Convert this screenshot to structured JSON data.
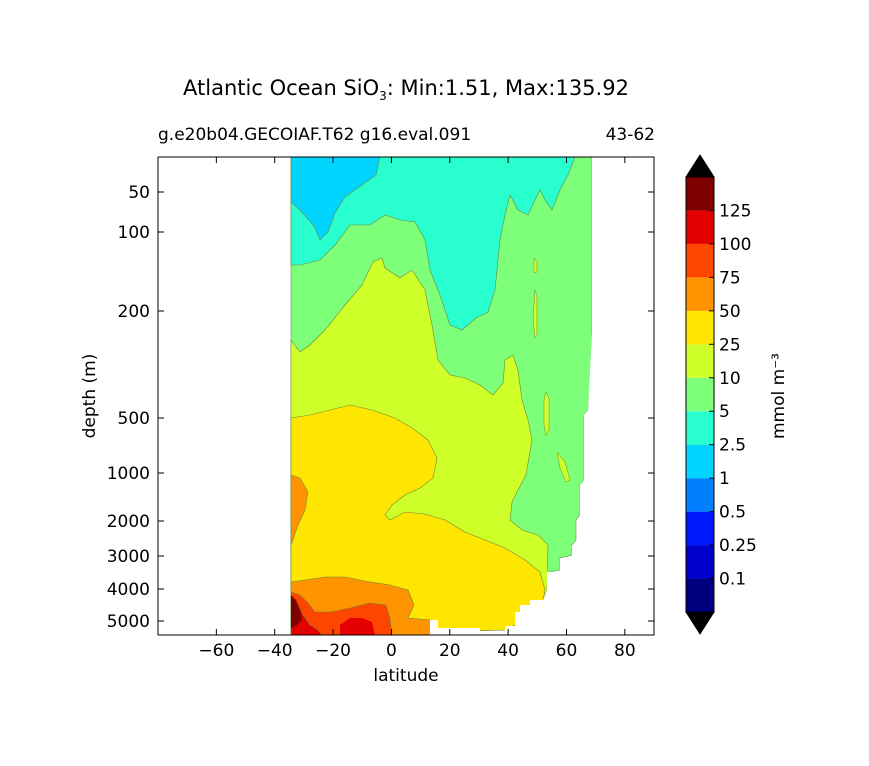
{
  "chart_data": {
    "type": "contour",
    "title_main": "Atlantic Ocean SiO",
    "title_sub": "3",
    "title_rest": ": Min:1.51, Max:135.92",
    "subtitle_left": "g.e20b04.GECOIAF.T62 g16.eval.091",
    "subtitle_right": "43-62",
    "xlabel": "latitude",
    "ylabel": "depth (m)",
    "xlim": [
      -80,
      90
    ],
    "x_ticks": [
      -60,
      -40,
      -20,
      0,
      20,
      40,
      60,
      80
    ],
    "x_tick_labels": [
      "−60",
      "−40",
      "−20",
      "0",
      "20",
      "40",
      "60",
      "80"
    ],
    "y_ticks": [
      50,
      100,
      200,
      500,
      1000,
      2000,
      3000,
      4000,
      5000
    ],
    "y_tick_labels": [
      "50",
      "100",
      "200",
      "500",
      "1000",
      "2000",
      "3000",
      "4000",
      "5000"
    ],
    "y_inverted": true,
    "colorbar": {
      "label": "mmol m⁻³",
      "levels": [
        "0.1",
        "0.25",
        "0.5",
        "1",
        "2.5",
        "5",
        "10",
        "25",
        "50",
        "75",
        "100",
        "125"
      ],
      "colors": [
        "#00007f",
        "#0000cd",
        "#0019ff",
        "#0080ff",
        "#00d4ff",
        "#29ffce",
        "#7dff7a",
        "#ceff29",
        "#ffe600",
        "#ff9400",
        "#ff4600",
        "#e40000",
        "#7f0000"
      ],
      "extend": "both"
    },
    "data_extent": {
      "lat_min": -34,
      "lat_max": 68
    },
    "min": 1.51,
    "max": 135.92
  }
}
